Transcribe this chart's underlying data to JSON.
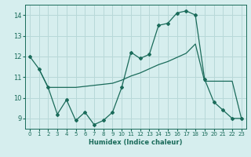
{
  "title": "",
  "xlabel": "Humidex (Indice chaleur)",
  "ylabel": "",
  "background_color": "#d6eeee",
  "grid_color": "#b8d8d8",
  "line_color": "#1a6b5a",
  "xlim": [
    -0.5,
    23.5
  ],
  "ylim": [
    8.5,
    14.5
  ],
  "xticks": [
    0,
    1,
    2,
    3,
    4,
    5,
    6,
    7,
    8,
    9,
    10,
    11,
    12,
    13,
    14,
    15,
    16,
    17,
    18,
    19,
    20,
    21,
    22,
    23
  ],
  "yticks": [
    9,
    10,
    11,
    12,
    13,
    14
  ],
  "line1_x": [
    0,
    1,
    2,
    3,
    4,
    5,
    6,
    7,
    8,
    9,
    10,
    11,
    12,
    13,
    14,
    15,
    16,
    17,
    18,
    19,
    20,
    21,
    22,
    23
  ],
  "line1_y": [
    12.0,
    11.4,
    10.5,
    9.2,
    9.9,
    8.9,
    9.3,
    8.7,
    8.9,
    9.3,
    10.5,
    12.2,
    11.9,
    12.1,
    13.5,
    13.6,
    14.1,
    14.2,
    14.0,
    10.9,
    9.8,
    9.4,
    9.0,
    9.0
  ],
  "line2_x": [
    1,
    2,
    3,
    4,
    5,
    6,
    7,
    8,
    9,
    10,
    11,
    12,
    13,
    14,
    15,
    16,
    17,
    18,
    19,
    20,
    21,
    22,
    23
  ],
  "line2_y": [
    11.4,
    10.5,
    10.5,
    10.5,
    10.5,
    10.55,
    10.6,
    10.65,
    10.7,
    10.85,
    11.05,
    11.2,
    11.4,
    11.6,
    11.75,
    11.95,
    12.15,
    12.6,
    10.8,
    10.8,
    10.8,
    10.8,
    9.0
  ]
}
